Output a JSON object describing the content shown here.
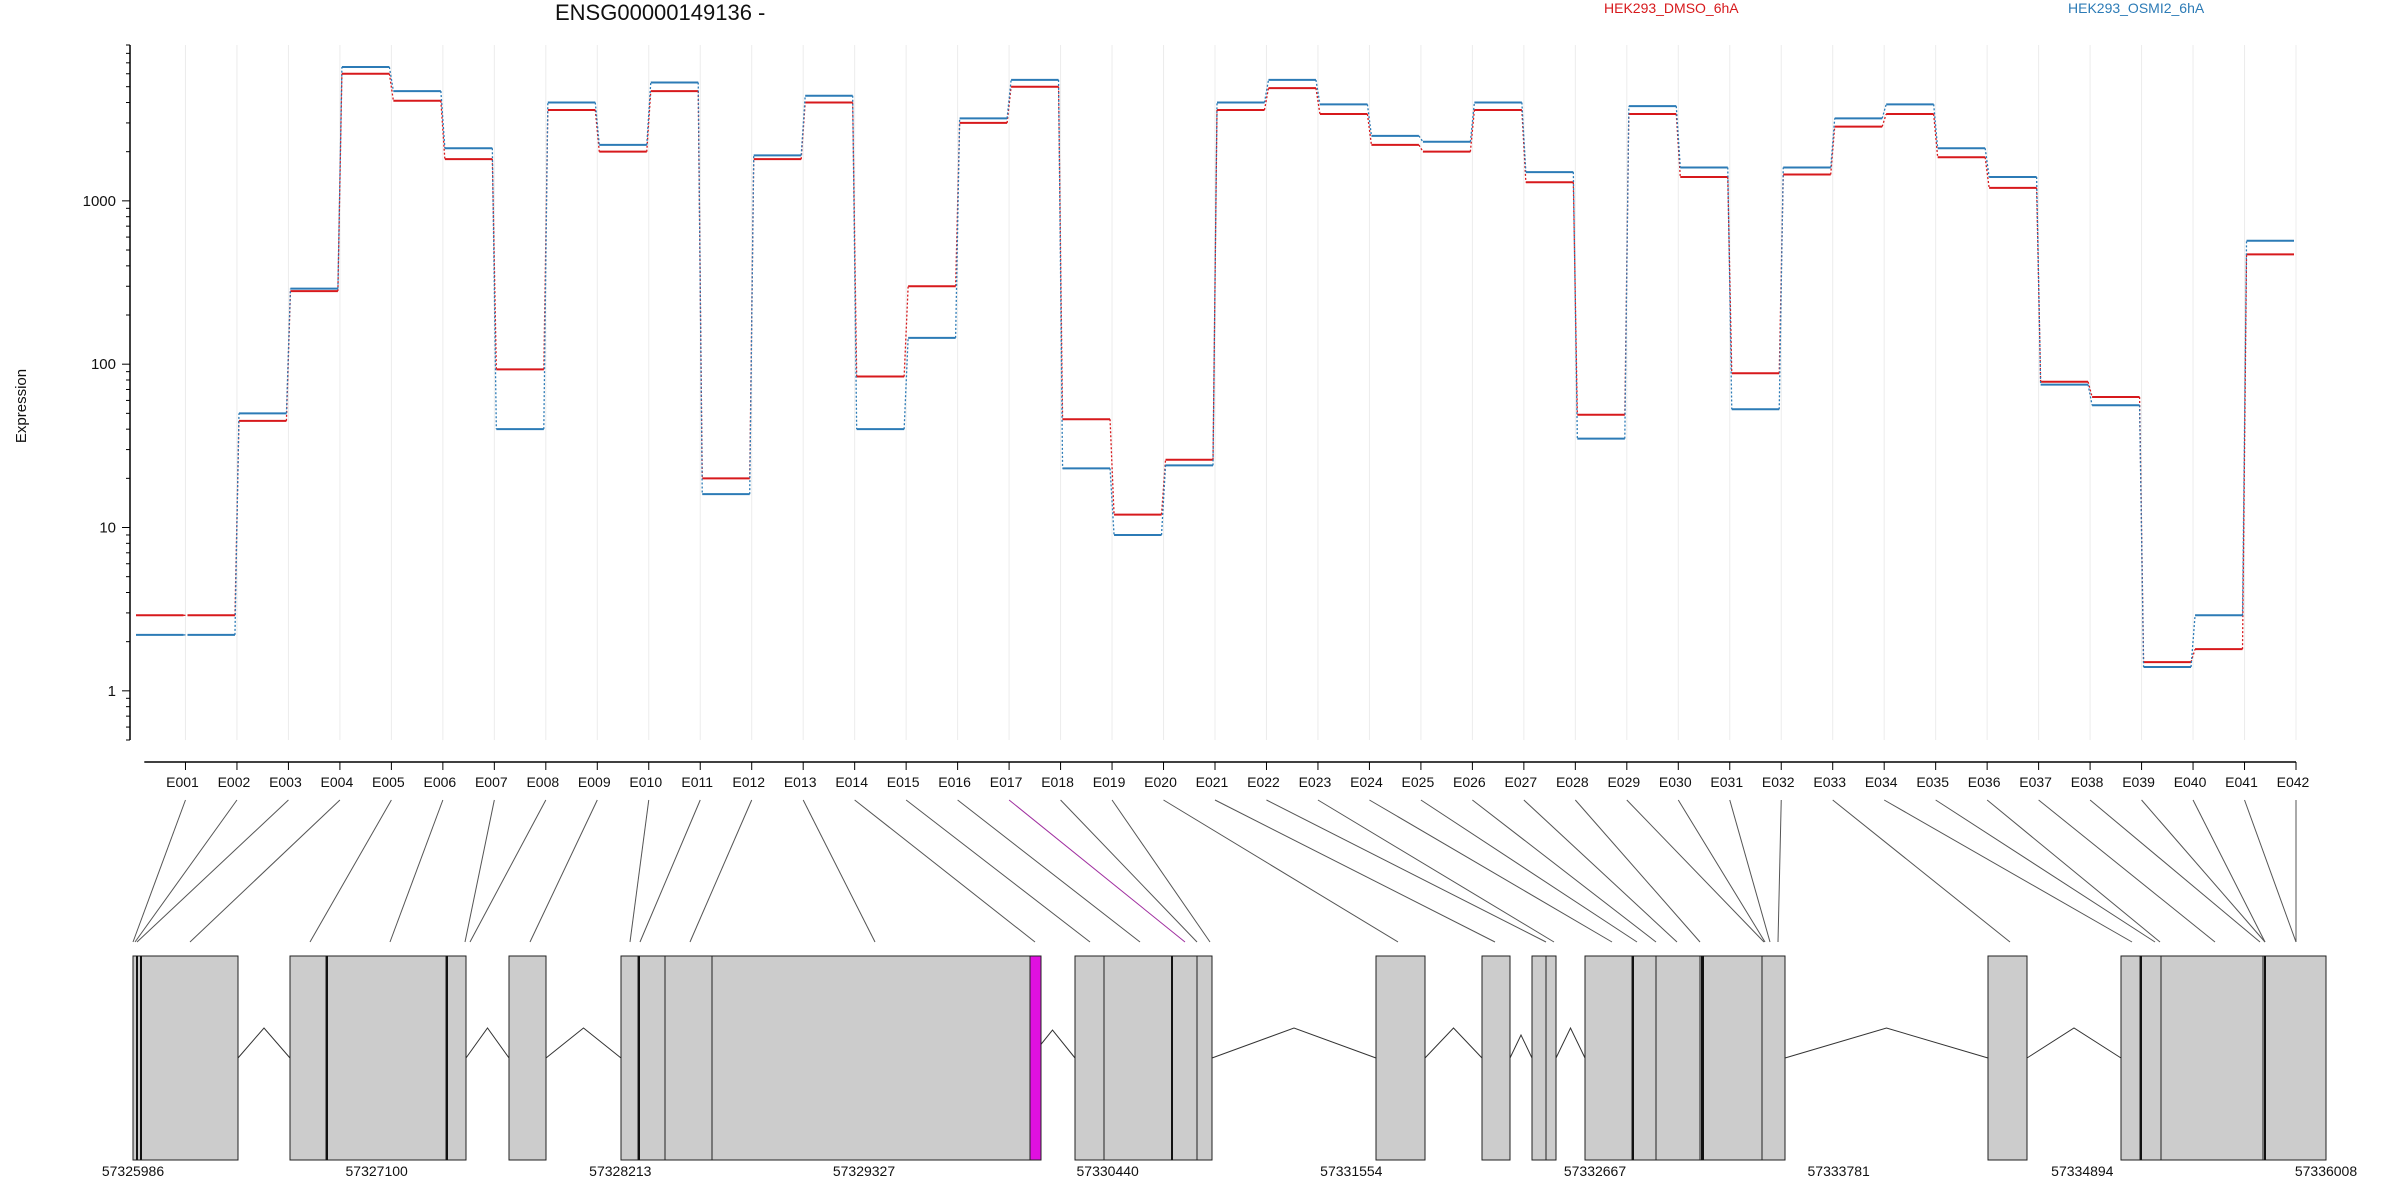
{
  "title": "ENSG00000149136 -",
  "legend": [
    {
      "name": "HEK293_DMSO_6hA",
      "color": "#d7191c"
    },
    {
      "name": "HEK293_OSMI2_6hA",
      "color": "#2c7bb6"
    }
  ],
  "highlight_color": "#e010e0",
  "chart_data": {
    "type": "line",
    "title": "ENSG00000149136 -",
    "ylabel": "Expression",
    "xlabel": "",
    "yscale": "log",
    "ylim": [
      0.5,
      9000
    ],
    "yticks": [
      1,
      10,
      100,
      1000
    ],
    "ytick_labels": [
      "1",
      "10",
      "100",
      "1000"
    ],
    "grid": "vertical, light",
    "legend_position": "top",
    "categories": [
      "E001",
      "E002",
      "E003",
      "E004",
      "E005",
      "E006",
      "E007",
      "E008",
      "E009",
      "E010",
      "E011",
      "E012",
      "E013",
      "E014",
      "E015",
      "E016",
      "E017",
      "E018",
      "E019",
      "E020",
      "E021",
      "E022",
      "E023",
      "E024",
      "E025",
      "E026",
      "E027",
      "E028",
      "E029",
      "E030",
      "E031",
      "E032",
      "E033",
      "E034",
      "E035",
      "E036",
      "E037",
      "E038",
      "E039",
      "E040",
      "E041",
      "E042"
    ],
    "series": [
      {
        "name": "HEK293_DMSO_6hA",
        "color": "#d7191c",
        "values": [
          2.9,
          2.9,
          45,
          280,
          6000,
          4100,
          1800,
          93,
          3600,
          2000,
          4700,
          20,
          1800,
          4000,
          84,
          300,
          3000,
          5000,
          46,
          12,
          26,
          3600,
          4900,
          3400,
          2200,
          2000,
          3600,
          1300,
          49,
          3400,
          1400,
          88,
          1450,
          2850,
          3400,
          1850,
          1200,
          78,
          63,
          1.5,
          1.8,
          470
        ]
      },
      {
        "name": "HEK293_OSMI2_6hA",
        "color": "#2c7bb6",
        "values": [
          2.2,
          2.2,
          50,
          290,
          6600,
          4700,
          2100,
          40,
          4000,
          2200,
          5300,
          16,
          1900,
          4400,
          40,
          145,
          3200,
          5500,
          23,
          9,
          24,
          4000,
          5500,
          3900,
          2500,
          2300,
          4000,
          1500,
          35,
          3800,
          1600,
          53,
          1600,
          3200,
          3900,
          2100,
          1400,
          75,
          56,
          1.4,
          2.9,
          570
        ]
      }
    ],
    "genomic_axis": {
      "tick_labels": [
        "57325986",
        "57327100",
        "57328213",
        "57329327",
        "57330440",
        "57331554",
        "57332667",
        "57333781",
        "57334894",
        "57336008"
      ],
      "highlighted_exon": "E017"
    }
  }
}
